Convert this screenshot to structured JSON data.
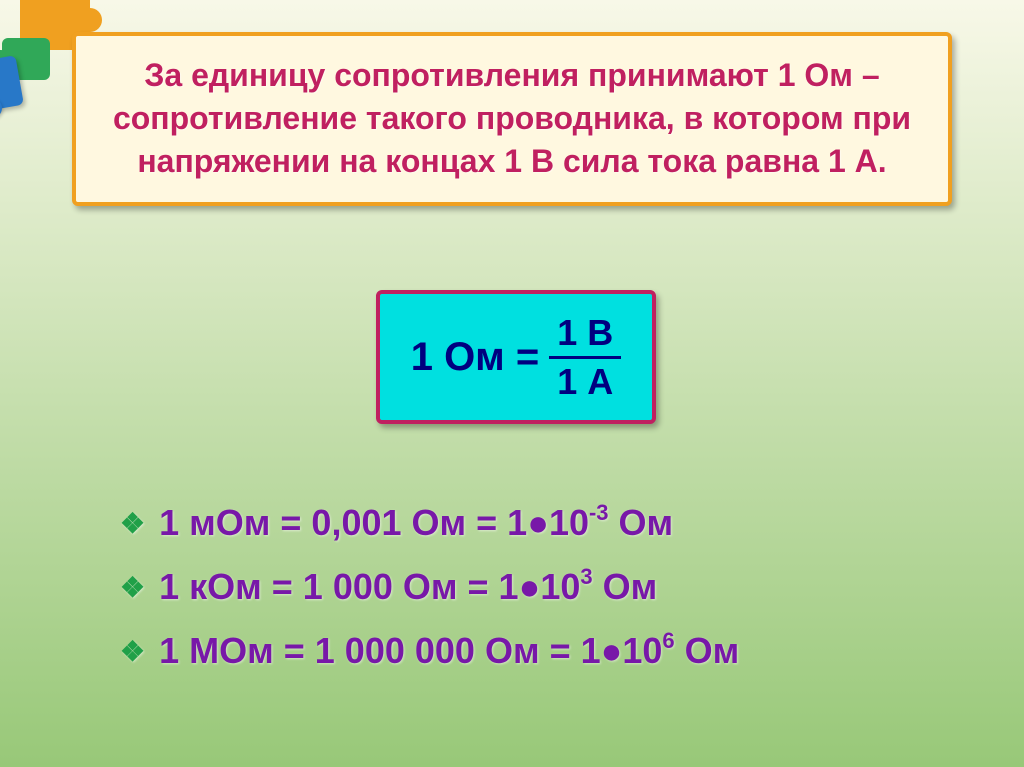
{
  "colors": {
    "background_top": "#f8f8e8",
    "background_bottom": "#98c878",
    "box_fill": "#fff8e0",
    "box_border": "#f0a020",
    "definition_text": "#c02060",
    "formula_fill": "#00e0e0",
    "formula_border": "#c02060",
    "formula_text": "#000080",
    "conversion_text": "#7818a8",
    "bullet": "#20a048",
    "puzzle_orange": "#f0a020",
    "puzzle_green": "#30a858",
    "puzzle_blue": "#2878c8"
  },
  "typography": {
    "definition_fontsize": 32,
    "formula_fontsize": 40,
    "fraction_fontsize": 36,
    "conversion_fontsize": 36,
    "superscript_fontsize": 22,
    "font_family": "Arial",
    "all_bold": true
  },
  "definition": {
    "text": "За единицу сопротивления принимают 1 Ом – сопротивление такого проводника, в котором при напряжении на концах 1 В сила тока равна 1 А."
  },
  "formula": {
    "left": "1 Ом =",
    "numerator": "1 В",
    "denominator": "1 А"
  },
  "conversions": [
    {
      "prefix": "1 мОм = 0,001 Ом = 1●10",
      "exp": "-3",
      "suffix": " Ом"
    },
    {
      "prefix": "1 кОм = 1 000 Ом = 1●10",
      "exp": "3",
      "suffix": " Ом"
    },
    {
      "prefix": "1 МОм = 1 000 000 Ом = 1●10",
      "exp": "6",
      "suffix": " Ом"
    }
  ],
  "bullet_glyph": "❖"
}
